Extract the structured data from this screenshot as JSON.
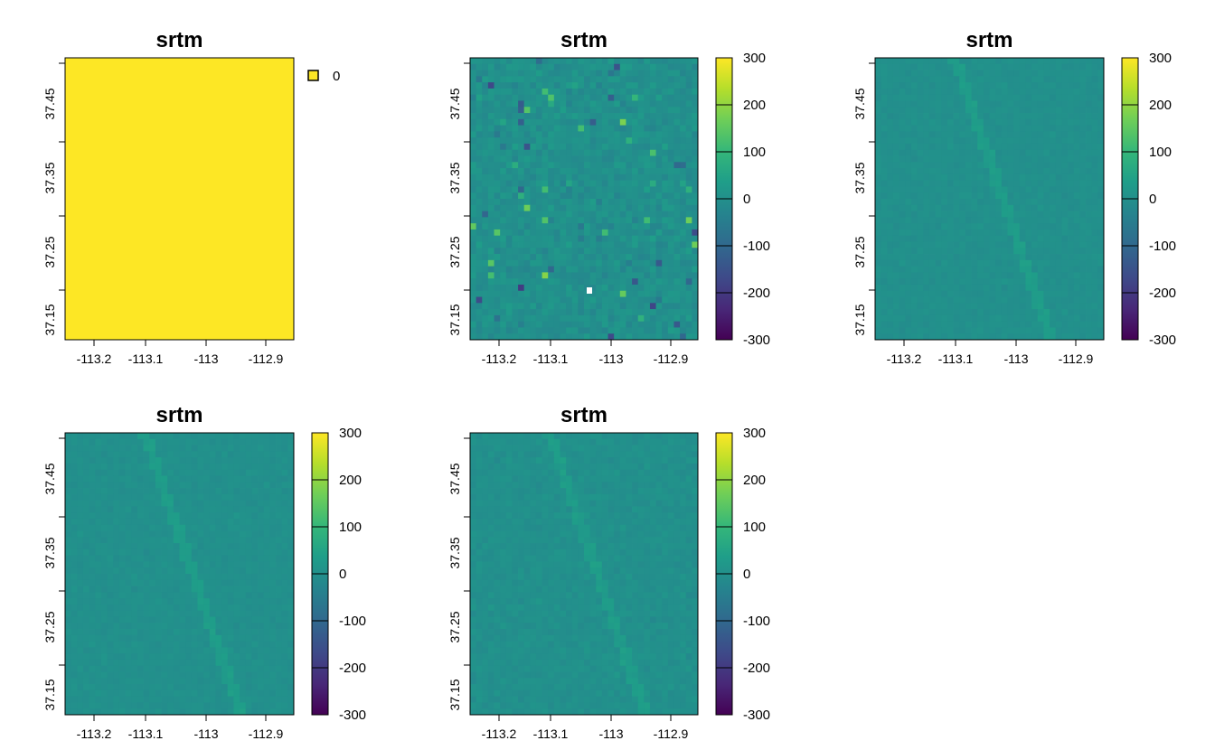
{
  "chart_data": [
    {
      "type": "heatmap",
      "title": "srtm",
      "fill": "uniform",
      "x_ticks": [
        "-113.2",
        "-113.1",
        "-113",
        "-112.9"
      ],
      "y_ticks": [
        "37.15",
        "37.25",
        "37.35",
        "37.45"
      ],
      "legend": {
        "kind": "categorical",
        "entries": [
          {
            "label": "0",
            "color": "#fde725"
          }
        ]
      }
    },
    {
      "type": "heatmap",
      "title": "srtm",
      "fill": "high-variance",
      "x_ticks": [
        "-113.2",
        "-113.1",
        "-113",
        "-112.9"
      ],
      "y_ticks": [
        "37.15",
        "37.25",
        "37.35",
        "37.45"
      ],
      "legend": {
        "kind": "continuous",
        "range": [
          -300,
          300
        ],
        "labels": [
          "300",
          "200",
          "100",
          "0",
          "-100",
          "-200",
          "-300"
        ]
      }
    },
    {
      "type": "heatmap",
      "title": "srtm",
      "fill": "low-variance",
      "x_ticks": [
        "-113.2",
        "-113.1",
        "-113",
        "-112.9"
      ],
      "y_ticks": [
        "37.15",
        "37.25",
        "37.35",
        "37.45"
      ],
      "legend": {
        "kind": "continuous",
        "range": [
          -300,
          300
        ],
        "labels": [
          "300",
          "200",
          "100",
          "0",
          "-100",
          "-200",
          "-300"
        ]
      }
    },
    {
      "type": "heatmap",
      "title": "srtm",
      "fill": "low-variance",
      "x_ticks": [
        "-113.2",
        "-113.1",
        "-113",
        "-112.9"
      ],
      "y_ticks": [
        "37.15",
        "37.25",
        "37.35",
        "37.45"
      ],
      "legend": {
        "kind": "continuous",
        "range": [
          -300,
          300
        ],
        "labels": [
          "300",
          "200",
          "100",
          "0",
          "-100",
          "-200",
          "-300"
        ]
      }
    },
    {
      "type": "heatmap",
      "title": "srtm",
      "fill": "medium-variance",
      "x_ticks": [
        "-113.2",
        "-113.1",
        "-113",
        "-112.9"
      ],
      "y_ticks": [
        "37.15",
        "37.25",
        "37.35",
        "37.45"
      ],
      "legend": {
        "kind": "continuous",
        "range": [
          -300,
          300
        ],
        "labels": [
          "300",
          "200",
          "100",
          "0",
          "-100",
          "-200",
          "-300"
        ]
      }
    }
  ],
  "colors": {
    "viridis": [
      "#440154",
      "#482878",
      "#3e4a89",
      "#31688e",
      "#26828e",
      "#1f9e89",
      "#35b779",
      "#6ece58",
      "#b5de2b",
      "#fde725"
    ]
  }
}
